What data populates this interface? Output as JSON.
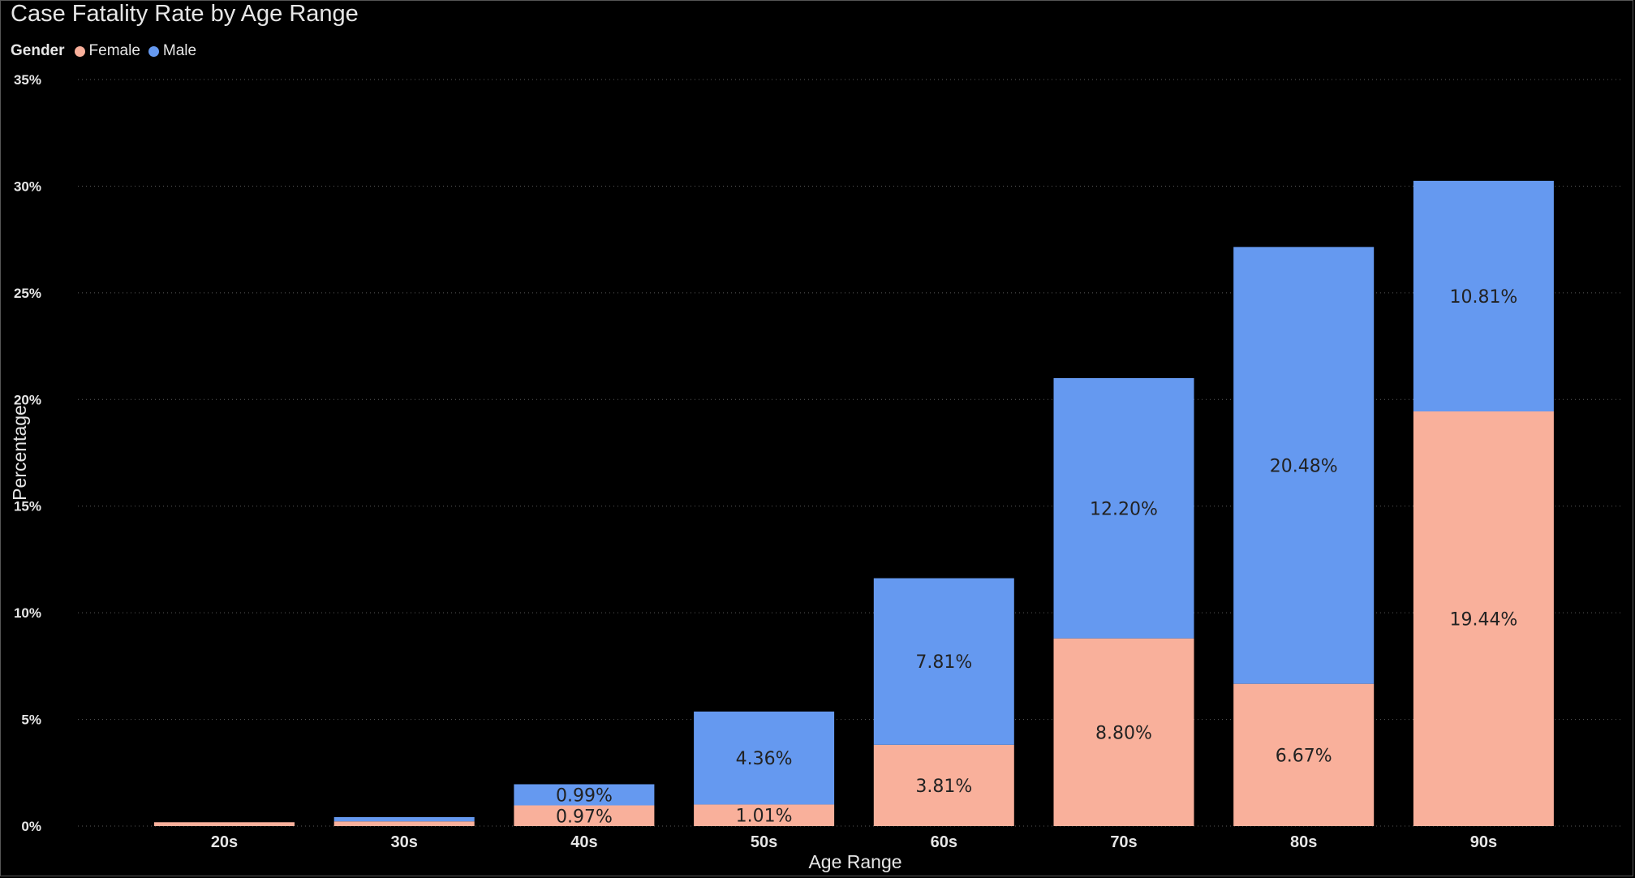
{
  "chart_data": {
    "type": "bar",
    "stacked": true,
    "title": "Case Fatality Rate by Age Range",
    "legend": {
      "title": "Gender",
      "placement": "top-left",
      "entries": [
        {
          "name": "Female",
          "color": "#f9b09b"
        },
        {
          "name": "Male",
          "color": "#6599f0"
        }
      ]
    },
    "xlabel": "Age Range",
    "ylabel": "Percentage",
    "categories": [
      "20s",
      "30s",
      "40s",
      "50s",
      "60s",
      "70s",
      "80s",
      "90s"
    ],
    "series": [
      {
        "name": "Female",
        "color": "#f9b09b",
        "values": [
          0.18,
          0.22,
          0.97,
          1.01,
          3.81,
          8.8,
          6.67,
          19.44
        ],
        "labels": [
          "",
          "",
          "0.97%",
          "1.01%",
          "3.81%",
          "8.80%",
          "6.67%",
          "19.44%"
        ]
      },
      {
        "name": "Male",
        "color": "#6599f0",
        "values": [
          0.0,
          0.2,
          0.99,
          4.36,
          7.81,
          12.2,
          20.48,
          10.81
        ],
        "labels": [
          "",
          "",
          "0.99%",
          "4.36%",
          "7.81%",
          "12.20%",
          "20.48%",
          "10.81%"
        ]
      }
    ],
    "ylim": [
      0,
      35
    ],
    "yticks": [
      0,
      5,
      10,
      15,
      20,
      25,
      30,
      35
    ],
    "ytick_labels": [
      "0%",
      "5%",
      "10%",
      "15%",
      "20%",
      "25%",
      "30%",
      "35%"
    ],
    "grid": true,
    "background": "#000000"
  }
}
